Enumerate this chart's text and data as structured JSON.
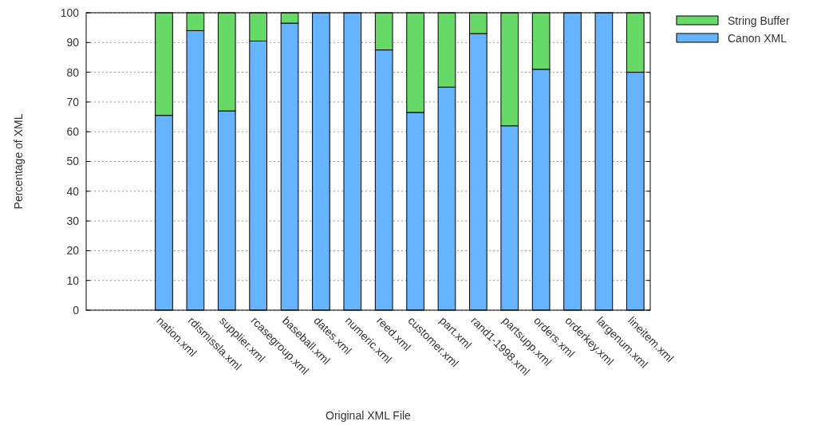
{
  "chart_data": {
    "type": "bar",
    "stacked": true,
    "xlabel": "Original XML File",
    "ylabel": "Percentage of XML",
    "categories": [
      null,
      null,
      "nation.xml",
      "rdismissla.xml",
      "supplier.xml",
      "rcasegroup.xml",
      "baseball.xml",
      "dates.xml",
      "numeric.xml",
      "reed.xml",
      "customer.xml",
      "part.xml",
      "rand1-1998.xml",
      "partsupp.xml",
      "orders.xml",
      "orderkey.xml",
      "largenum.xml",
      "lineitem.xml"
    ],
    "series": [
      {
        "name": "Canon XML",
        "color": "#66b3ff",
        "values": [
          null,
          null,
          65.5,
          94,
          67,
          90.5,
          96.5,
          100,
          100,
          87.5,
          66.5,
          75,
          93,
          62,
          81,
          100,
          100,
          80
        ]
      },
      {
        "name": "String Buffer",
        "color": "#66d966",
        "values": [
          null,
          null,
          34.5,
          6,
          33,
          9.5,
          3.5,
          0,
          0,
          12.5,
          33.5,
          25,
          7,
          38,
          19,
          0,
          0,
          20
        ]
      }
    ],
    "ylim": [
      0,
      100
    ],
    "yticks": [
      0,
      10,
      20,
      30,
      40,
      50,
      60,
      70,
      80,
      90,
      100
    ],
    "grid": "y",
    "legend": "top right"
  }
}
